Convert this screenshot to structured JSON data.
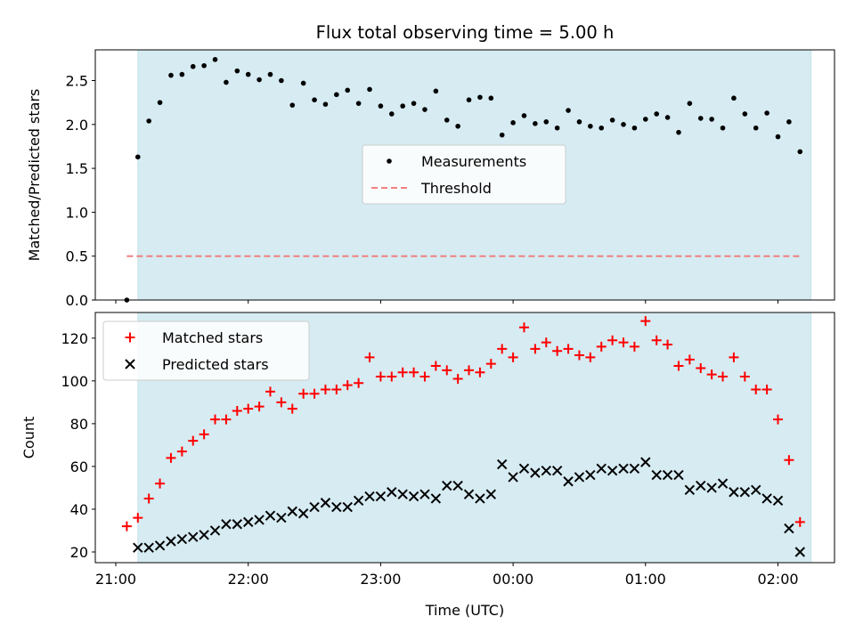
{
  "chart_data": [
    {
      "type": "scatter",
      "title": "Flux total observing time = 5.00 h",
      "ylabel": "Matched/Predicted stars",
      "xlabel": "",
      "ylim": [
        0,
        2.85
      ],
      "yticks": [
        0.0,
        0.5,
        1.0,
        1.5,
        2.0,
        2.5
      ],
      "ytick_labels": [
        "0.0",
        "0.5",
        "1.0",
        "1.5",
        "2.0",
        "2.5"
      ],
      "observing_window": [
        "21:10",
        "02:15"
      ],
      "legend_location": "center",
      "series": [
        {
          "name": "Measurements",
          "marker": "dot",
          "color": "#000000",
          "x": [
            "21:05",
            "21:10",
            "21:15",
            "21:20",
            "21:25",
            "21:30",
            "21:35",
            "21:40",
            "21:45",
            "21:50",
            "21:55",
            "22:00",
            "22:05",
            "22:10",
            "22:15",
            "22:20",
            "22:25",
            "22:30",
            "22:35",
            "22:40",
            "22:45",
            "22:50",
            "22:55",
            "23:00",
            "23:05",
            "23:10",
            "23:15",
            "23:20",
            "23:25",
            "23:30",
            "23:35",
            "23:40",
            "23:45",
            "23:50",
            "23:55",
            "00:00",
            "00:05",
            "00:10",
            "00:15",
            "00:20",
            "00:25",
            "00:30",
            "00:35",
            "00:40",
            "00:45",
            "00:50",
            "00:55",
            "01:00",
            "01:05",
            "01:10",
            "01:15",
            "01:20",
            "01:25",
            "01:30",
            "01:35",
            "01:40",
            "01:45",
            "01:50",
            "01:55",
            "02:00",
            "02:05",
            "02:10"
          ],
          "y": [
            0.0,
            1.63,
            2.04,
            2.25,
            2.56,
            2.57,
            2.66,
            2.67,
            2.74,
            2.48,
            2.61,
            2.57,
            2.51,
            2.57,
            2.5,
            2.22,
            2.47,
            2.28,
            2.23,
            2.34,
            2.39,
            2.24,
            2.4,
            2.21,
            2.12,
            2.21,
            2.24,
            2.17,
            2.38,
            2.05,
            1.98,
            2.28,
            2.31,
            2.3,
            1.88,
            2.02,
            2.1,
            2.01,
            2.03,
            1.96,
            2.16,
            2.03,
            1.98,
            1.96,
            2.05,
            2.0,
            1.96,
            2.06,
            2.12,
            2.08,
            1.91,
            2.24,
            2.07,
            2.06,
            1.96,
            2.3,
            2.12,
            1.96,
            2.13,
            1.86,
            2.03,
            1.69
          ]
        },
        {
          "name": "Threshold",
          "marker": "dashed-line",
          "color": "#f08080",
          "x": [
            "21:05",
            "02:10"
          ],
          "y": [
            0.5,
            0.5
          ]
        }
      ]
    },
    {
      "type": "scatter",
      "title": "",
      "xlabel": "Time (UTC)",
      "ylabel": "Count",
      "ylim": [
        15,
        132
      ],
      "yticks": [
        20,
        40,
        60,
        80,
        100,
        120
      ],
      "ytick_labels": [
        "20",
        "40",
        "60",
        "80",
        "100",
        "120"
      ],
      "xticks": [
        "21:00",
        "22:00",
        "23:00",
        "00:00",
        "01:00",
        "02:00"
      ],
      "observing_window": [
        "21:10",
        "02:15"
      ],
      "legend_location": "upper-left",
      "series": [
        {
          "name": "Matched stars",
          "marker": "plus",
          "color": "#ff0000",
          "x": [
            "21:05",
            "21:10",
            "21:15",
            "21:20",
            "21:25",
            "21:30",
            "21:35",
            "21:40",
            "21:45",
            "21:50",
            "21:55",
            "22:00",
            "22:05",
            "22:10",
            "22:15",
            "22:20",
            "22:25",
            "22:30",
            "22:35",
            "22:40",
            "22:45",
            "22:50",
            "22:55",
            "23:00",
            "23:05",
            "23:10",
            "23:15",
            "23:20",
            "23:25",
            "23:30",
            "23:35",
            "23:40",
            "23:45",
            "23:50",
            "23:55",
            "00:00",
            "00:05",
            "00:10",
            "00:15",
            "00:20",
            "00:25",
            "00:30",
            "00:35",
            "00:40",
            "00:45",
            "00:50",
            "00:55",
            "01:00",
            "01:05",
            "01:10",
            "01:15",
            "01:20",
            "01:25",
            "01:30",
            "01:35",
            "01:40",
            "01:45",
            "01:50",
            "01:55",
            "02:00",
            "02:05",
            "02:10"
          ],
          "y": [
            32,
            36,
            45,
            52,
            64,
            67,
            72,
            75,
            82,
            82,
            86,
            87,
            88,
            95,
            90,
            87,
            94,
            94,
            96,
            96,
            98,
            99,
            111,
            102,
            102,
            104,
            104,
            102,
            107,
            105,
            101,
            105,
            104,
            108,
            115,
            111,
            125,
            115,
            118,
            114,
            115,
            112,
            111,
            116,
            119,
            118,
            116,
            128,
            119,
            117,
            107,
            110,
            106,
            103,
            102,
            111,
            102,
            96,
            96,
            82,
            63,
            34
          ]
        },
        {
          "name": "Predicted stars",
          "marker": "x",
          "color": "#000000",
          "x": [
            "21:10",
            "21:15",
            "21:20",
            "21:25",
            "21:30",
            "21:35",
            "21:40",
            "21:45",
            "21:50",
            "21:55",
            "22:00",
            "22:05",
            "22:10",
            "22:15",
            "22:20",
            "22:25",
            "22:30",
            "22:35",
            "22:40",
            "22:45",
            "22:50",
            "22:55",
            "23:00",
            "23:05",
            "23:10",
            "23:15",
            "23:20",
            "23:25",
            "23:30",
            "23:35",
            "23:40",
            "23:45",
            "23:50",
            "23:55",
            "00:00",
            "00:05",
            "00:10",
            "00:15",
            "00:20",
            "00:25",
            "00:30",
            "00:35",
            "00:40",
            "00:45",
            "00:50",
            "00:55",
            "01:00",
            "01:05",
            "01:10",
            "01:15",
            "01:20",
            "01:25",
            "01:30",
            "01:35",
            "01:40",
            "01:45",
            "01:50",
            "01:55",
            "02:00",
            "02:05",
            "02:10"
          ],
          "y": [
            22,
            22,
            23,
            25,
            26,
            27,
            28,
            30,
            33,
            33,
            34,
            35,
            37,
            36,
            39,
            38,
            41,
            43,
            41,
            41,
            44,
            46,
            46,
            48,
            47,
            46,
            47,
            45,
            51,
            51,
            47,
            45,
            47,
            61,
            55,
            59,
            57,
            58,
            58,
            53,
            55,
            56,
            59,
            58,
            59,
            59,
            62,
            56,
            56,
            56,
            49,
            51,
            50,
            52,
            48,
            48,
            49,
            45,
            44,
            31,
            20
          ]
        }
      ]
    }
  ]
}
